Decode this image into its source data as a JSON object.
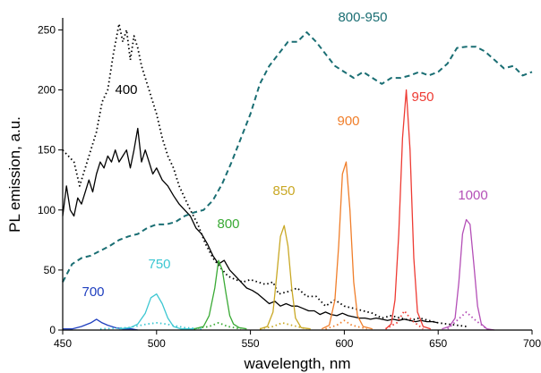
{
  "chart_data": {
    "type": "line",
    "title": "",
    "xlabel": "wavelength, nm",
    "ylabel": "PL emission, a.u.",
    "xlim": [
      450,
      700
    ],
    "ylim": [
      0,
      260
    ],
    "x_ticks": [
      "450",
      "500",
      "550",
      "600",
      "650",
      "700"
    ],
    "y_ticks": [
      "0",
      "50",
      "100",
      "150",
      "200",
      "250"
    ],
    "grid": false,
    "series": [
      {
        "name": "400",
        "color": "#000000",
        "style": "dotted",
        "points": [
          [
            450,
            150
          ],
          [
            453,
            145
          ],
          [
            456,
            140
          ],
          [
            459,
            120
          ],
          [
            462,
            135
          ],
          [
            465,
            150
          ],
          [
            468,
            165
          ],
          [
            471,
            190
          ],
          [
            474,
            200
          ],
          [
            477,
            230
          ],
          [
            480,
            255
          ],
          [
            482,
            240
          ],
          [
            484,
            250
          ],
          [
            486,
            225
          ],
          [
            488,
            245
          ],
          [
            490,
            235
          ],
          [
            492,
            220
          ],
          [
            494,
            210
          ],
          [
            496,
            200
          ],
          [
            498,
            190
          ],
          [
            500,
            180
          ],
          [
            503,
            160
          ],
          [
            506,
            145
          ],
          [
            509,
            135
          ],
          [
            512,
            120
          ],
          [
            515,
            110
          ],
          [
            518,
            100
          ],
          [
            522,
            88
          ],
          [
            526,
            72
          ],
          [
            530,
            60
          ],
          [
            534,
            52
          ],
          [
            538,
            45
          ],
          [
            542,
            42
          ],
          [
            546,
            40
          ],
          [
            550,
            42
          ],
          [
            554,
            40
          ],
          [
            558,
            38
          ],
          [
            562,
            40
          ],
          [
            565,
            30
          ],
          [
            570,
            32
          ],
          [
            575,
            35
          ],
          [
            580,
            28
          ],
          [
            585,
            28
          ],
          [
            590,
            20
          ],
          [
            595,
            25
          ],
          [
            600,
            20
          ],
          [
            605,
            18
          ],
          [
            610,
            16
          ],
          [
            615,
            14
          ],
          [
            620,
            10
          ],
          [
            625,
            12
          ],
          [
            630,
            10
          ],
          [
            635,
            8
          ],
          [
            640,
            10
          ],
          [
            645,
            8
          ],
          [
            650,
            6
          ],
          [
            655,
            5
          ],
          [
            660,
            4
          ],
          [
            665,
            3
          ]
        ]
      },
      {
        "name": "",
        "color": "#000000",
        "style": "solid",
        "points": [
          [
            450,
            95
          ],
          [
            452,
            120
          ],
          [
            454,
            100
          ],
          [
            456,
            95
          ],
          [
            458,
            110
          ],
          [
            460,
            105
          ],
          [
            462,
            115
          ],
          [
            464,
            125
          ],
          [
            466,
            115
          ],
          [
            468,
            130
          ],
          [
            470,
            140
          ],
          [
            472,
            135
          ],
          [
            474,
            145
          ],
          [
            476,
            140
          ],
          [
            478,
            150
          ],
          [
            480,
            140
          ],
          [
            482,
            145
          ],
          [
            484,
            150
          ],
          [
            486,
            135
          ],
          [
            488,
            150
          ],
          [
            490,
            168
          ],
          [
            492,
            140
          ],
          [
            494,
            150
          ],
          [
            496,
            140
          ],
          [
            498,
            130
          ],
          [
            500,
            135
          ],
          [
            503,
            125
          ],
          [
            506,
            120
          ],
          [
            509,
            112
          ],
          [
            512,
            105
          ],
          [
            515,
            100
          ],
          [
            518,
            95
          ],
          [
            521,
            85
          ],
          [
            524,
            80
          ],
          [
            527,
            72
          ],
          [
            530,
            62
          ],
          [
            533,
            55
          ],
          [
            536,
            58
          ],
          [
            539,
            50
          ],
          [
            542,
            45
          ],
          [
            545,
            40
          ],
          [
            548,
            35
          ],
          [
            551,
            33
          ],
          [
            554,
            30
          ],
          [
            557,
            26
          ],
          [
            560,
            22
          ],
          [
            563,
            24
          ],
          [
            566,
            20
          ],
          [
            569,
            22
          ],
          [
            572,
            20
          ],
          [
            575,
            20
          ],
          [
            578,
            18
          ],
          [
            581,
            16
          ],
          [
            584,
            16
          ],
          [
            587,
            13
          ],
          [
            590,
            15
          ],
          [
            593,
            13
          ],
          [
            596,
            12
          ],
          [
            599,
            14
          ],
          [
            602,
            12
          ],
          [
            605,
            11
          ],
          [
            608,
            10
          ],
          [
            611,
            10
          ],
          [
            614,
            9
          ],
          [
            617,
            10
          ],
          [
            620,
            9
          ],
          [
            623,
            8
          ],
          [
            626,
            9
          ],
          [
            629,
            8
          ],
          [
            632,
            9
          ],
          [
            635,
            8
          ],
          [
            638,
            7
          ],
          [
            641,
            8
          ],
          [
            644,
            7
          ],
          [
            647,
            7
          ],
          [
            650,
            6
          ]
        ]
      },
      {
        "name": "800-950",
        "color": "#1a6e73",
        "style": "dashed",
        "points": [
          [
            450,
            40
          ],
          [
            455,
            55
          ],
          [
            460,
            60
          ],
          [
            465,
            62
          ],
          [
            470,
            66
          ],
          [
            475,
            70
          ],
          [
            480,
            75
          ],
          [
            485,
            78
          ],
          [
            490,
            80
          ],
          [
            495,
            85
          ],
          [
            500,
            88
          ],
          [
            505,
            88
          ],
          [
            510,
            90
          ],
          [
            515,
            95
          ],
          [
            520,
            98
          ],
          [
            525,
            100
          ],
          [
            530,
            108
          ],
          [
            535,
            122
          ],
          [
            540,
            140
          ],
          [
            545,
            160
          ],
          [
            550,
            180
          ],
          [
            555,
            205
          ],
          [
            560,
            220
          ],
          [
            565,
            230
          ],
          [
            570,
            240
          ],
          [
            575,
            240
          ],
          [
            580,
            248
          ],
          [
            585,
            240
          ],
          [
            590,
            230
          ],
          [
            595,
            220
          ],
          [
            600,
            215
          ],
          [
            605,
            210
          ],
          [
            610,
            215
          ],
          [
            615,
            210
          ],
          [
            620,
            205
          ],
          [
            625,
            210
          ],
          [
            630,
            210
          ],
          [
            635,
            212
          ],
          [
            640,
            215
          ],
          [
            645,
            212
          ],
          [
            650,
            215
          ],
          [
            655,
            222
          ],
          [
            660,
            235
          ],
          [
            665,
            236
          ],
          [
            670,
            236
          ],
          [
            675,
            232
          ],
          [
            680,
            225
          ],
          [
            685,
            218
          ],
          [
            690,
            220
          ],
          [
            695,
            212
          ],
          [
            700,
            215
          ]
        ]
      },
      {
        "name": "700",
        "color": "#1f3fbf",
        "style": "solid",
        "points": [
          [
            450,
            1
          ],
          [
            455,
            1
          ],
          [
            460,
            3
          ],
          [
            465,
            6
          ],
          [
            468,
            9
          ],
          [
            471,
            6
          ],
          [
            474,
            4
          ],
          [
            478,
            2
          ],
          [
            482,
            1
          ],
          [
            487,
            1
          ],
          [
            490,
            0
          ]
        ]
      },
      {
        "name": "750",
        "color": "#3cc7d2",
        "style": "solid",
        "points": [
          [
            480,
            1
          ],
          [
            486,
            2
          ],
          [
            490,
            5
          ],
          [
            494,
            14
          ],
          [
            497,
            27
          ],
          [
            500,
            30
          ],
          [
            503,
            22
          ],
          [
            506,
            10
          ],
          [
            509,
            3
          ],
          [
            513,
            1
          ],
          [
            520,
            1
          ]
        ]
      },
      {
        "name": "",
        "color": "#3cc7d2",
        "style": "dotted",
        "points": [
          [
            470,
            1
          ],
          [
            485,
            2
          ],
          [
            495,
            5
          ],
          [
            500,
            6
          ],
          [
            505,
            5
          ],
          [
            515,
            2
          ],
          [
            525,
            1
          ]
        ]
      },
      {
        "name": "800",
        "color": "#3aaa35",
        "style": "solid",
        "points": [
          [
            520,
            1
          ],
          [
            525,
            3
          ],
          [
            528,
            12
          ],
          [
            531,
            35
          ],
          [
            533,
            58
          ],
          [
            535,
            50
          ],
          [
            537,
            30
          ],
          [
            539,
            12
          ],
          [
            541,
            5
          ],
          [
            544,
            2
          ],
          [
            548,
            1
          ]
        ]
      },
      {
        "name": "",
        "color": "#3aaa35",
        "style": "dotted",
        "points": [
          [
            520,
            1
          ],
          [
            528,
            3
          ],
          [
            533,
            6
          ],
          [
            538,
            3
          ],
          [
            545,
            1
          ]
        ]
      },
      {
        "name": "850",
        "color": "#c9a825",
        "style": "solid",
        "points": [
          [
            555,
            1
          ],
          [
            559,
            3
          ],
          [
            562,
            15
          ],
          [
            564,
            45
          ],
          [
            566,
            78
          ],
          [
            568,
            87
          ],
          [
            570,
            70
          ],
          [
            572,
            35
          ],
          [
            574,
            10
          ],
          [
            577,
            2
          ],
          [
            582,
            1
          ]
        ]
      },
      {
        "name": "",
        "color": "#c9a825",
        "style": "dotted",
        "points": [
          [
            555,
            1
          ],
          [
            562,
            3
          ],
          [
            567,
            6
          ],
          [
            572,
            4
          ],
          [
            580,
            1
          ]
        ]
      },
      {
        "name": "900",
        "color": "#f07e2a",
        "style": "solid",
        "points": [
          [
            588,
            1
          ],
          [
            592,
            4
          ],
          [
            595,
            25
          ],
          [
            597,
            70
          ],
          [
            599,
            130
          ],
          [
            601,
            140
          ],
          [
            603,
            100
          ],
          [
            605,
            40
          ],
          [
            607,
            12
          ],
          [
            610,
            3
          ],
          [
            615,
            1
          ]
        ]
      },
      {
        "name": "",
        "color": "#f07e2a",
        "style": "dotted",
        "points": [
          [
            590,
            1
          ],
          [
            596,
            4
          ],
          [
            600,
            8
          ],
          [
            604,
            4
          ],
          [
            612,
            1
          ]
        ]
      },
      {
        "name": "950",
        "color": "#ee3b33",
        "style": "solid",
        "points": [
          [
            622,
            1
          ],
          [
            625,
            5
          ],
          [
            627,
            25
          ],
          [
            629,
            80
          ],
          [
            631,
            160
          ],
          [
            633,
            200
          ],
          [
            635,
            150
          ],
          [
            637,
            60
          ],
          [
            639,
            15
          ],
          [
            642,
            3
          ],
          [
            646,
            1
          ]
        ]
      },
      {
        "name": "",
        "color": "#ee3b33",
        "style": "dotted",
        "points": [
          [
            622,
            1
          ],
          [
            628,
            6
          ],
          [
            632,
            16
          ],
          [
            636,
            8
          ],
          [
            642,
            1
          ]
        ]
      },
      {
        "name": "1000",
        "color": "#b44fb7",
        "style": "solid",
        "points": [
          [
            652,
            1
          ],
          [
            656,
            3
          ],
          [
            659,
            10
          ],
          [
            661,
            40
          ],
          [
            663,
            80
          ],
          [
            665,
            92
          ],
          [
            667,
            88
          ],
          [
            669,
            55
          ],
          [
            671,
            20
          ],
          [
            673,
            5
          ],
          [
            676,
            1
          ],
          [
            680,
            0
          ]
        ]
      },
      {
        "name": "",
        "color": "#b44fb7",
        "style": "dotted",
        "points": [
          [
            655,
            1
          ],
          [
            660,
            8
          ],
          [
            665,
            15
          ],
          [
            670,
            8
          ],
          [
            676,
            1
          ]
        ]
      }
    ]
  }
}
